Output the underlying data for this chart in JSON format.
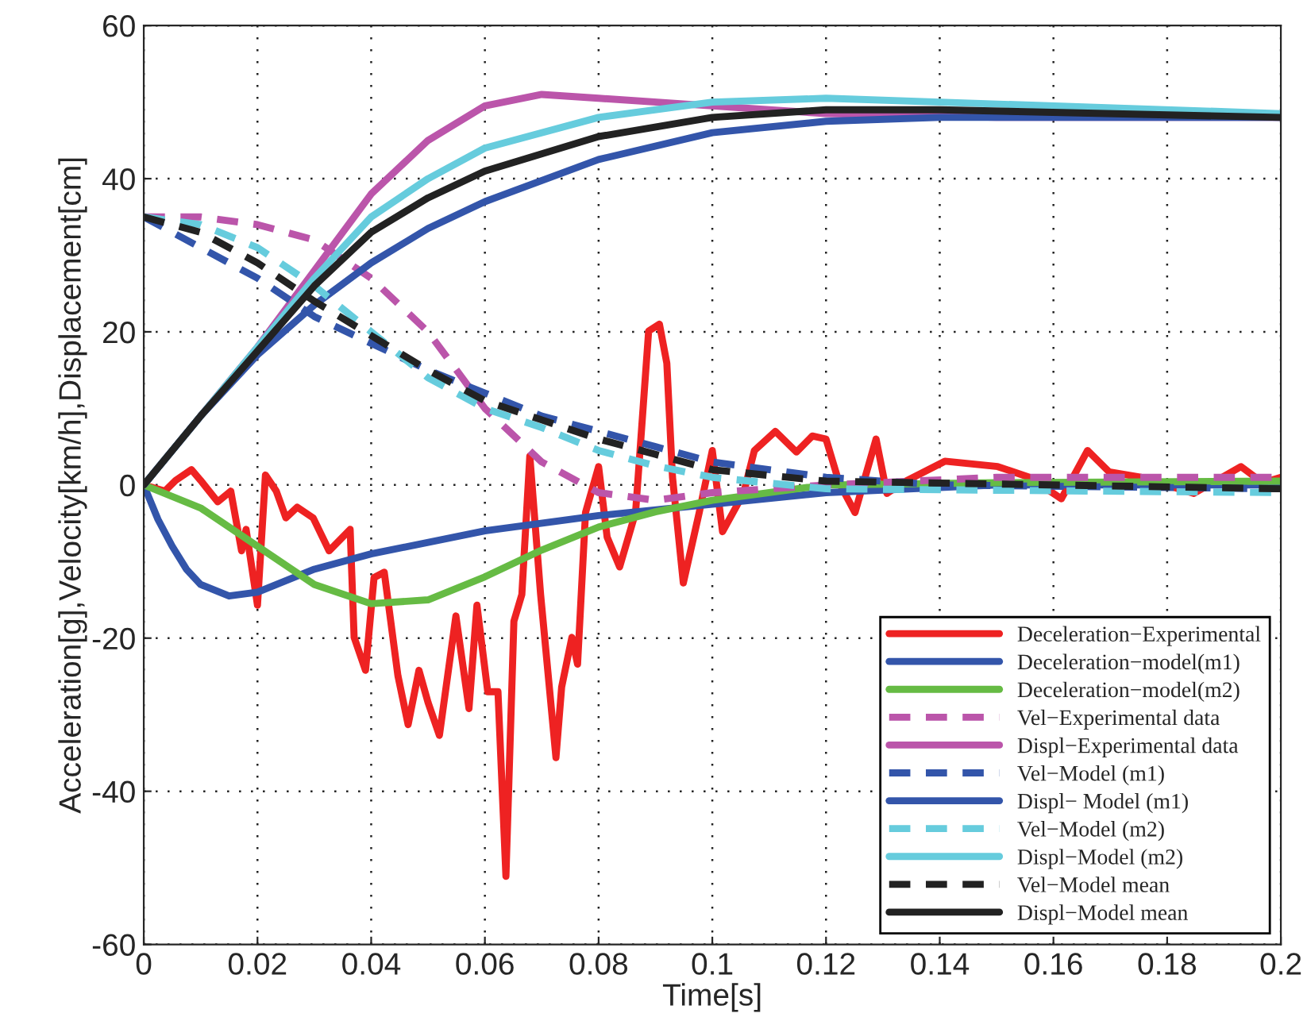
{
  "chart_data": {
    "type": "line",
    "xlabel": "Time[s]",
    "ylabel": "Acceleration[g],Velocity[km/h],Displacement[cm]",
    "xlim": [
      0,
      0.2
    ],
    "ylim": [
      -60,
      60
    ],
    "xticks": [
      0,
      0.02,
      0.04,
      0.06,
      0.08,
      0.1,
      0.12,
      0.14,
      0.16,
      0.18,
      0.2
    ],
    "yticks": [
      -60,
      -40,
      -20,
      0,
      20,
      40,
      60
    ],
    "grid": true,
    "legend": "bottom right",
    "marker": "none",
    "series": [
      {
        "name": "Deceleration−Experimental",
        "color": "#ee2222",
        "line_style": "solid",
        "x": [
          0,
          0.0037,
          0.0056,
          0.0084,
          0.01,
          0.013,
          0.0153,
          0.0172,
          0.018,
          0.02,
          0.0214,
          0.0233,
          0.025,
          0.027,
          0.0298,
          0.0326,
          0.0363,
          0.037,
          0.039,
          0.0405,
          0.0423,
          0.0447,
          0.0465,
          0.0484,
          0.05,
          0.052,
          0.0549,
          0.0572,
          0.0586,
          0.0605,
          0.0623,
          0.0637,
          0.0651,
          0.0665,
          0.0679,
          0.0698,
          0.0725,
          0.0735,
          0.0753,
          0.0763,
          0.0777,
          0.08,
          0.0815,
          0.0837,
          0.0865,
          0.0888,
          0.0907,
          0.092,
          0.093,
          0.0949,
          0.0977,
          0.1,
          0.1018,
          0.1055,
          0.1074,
          0.1111,
          0.1148,
          0.1176,
          0.12,
          0.1223,
          0.1251,
          0.1288,
          0.1307,
          0.1335,
          0.1409,
          0.1502,
          0.1558,
          0.1614,
          0.166,
          0.1698,
          0.1754,
          0.1847,
          0.193,
          0.1968,
          0.2
        ],
        "values": [
          0,
          -0.8,
          0.6,
          2,
          0.6,
          -2.2,
          -0.8,
          -8.6,
          -5.8,
          -15.7,
          1.3,
          -0.8,
          -4.3,
          -2.9,
          -4.3,
          -8.6,
          -5.8,
          -19.9,
          -24.2,
          -12.1,
          -11.4,
          -24.9,
          -31.3,
          -24.2,
          -28.4,
          -32.7,
          -17.1,
          -29.2,
          -15.7,
          -27,
          -27,
          -51.1,
          -17.8,
          -14.3,
          3.8,
          -14.3,
          -35.6,
          -26.4,
          -19.9,
          -23.4,
          -3.6,
          2.4,
          -6.8,
          -10.7,
          -3.6,
          20.1,
          21,
          15.9,
          1,
          -12.8,
          -3.6,
          4.5,
          -6.1,
          -1.1,
          4.5,
          7,
          4.3,
          6.4,
          6,
          0.3,
          -3.6,
          6,
          -1.1,
          0.3,
          3.1,
          2.4,
          1,
          -1.8,
          4.5,
          1.7,
          1,
          -1.1,
          2.4,
          0.3,
          1
        ]
      },
      {
        "name": "Deceleration−model(m1)",
        "color": "#3355aa",
        "line_style": "solid",
        "x": [
          0,
          0.0025,
          0.005,
          0.0075,
          0.01,
          0.015,
          0.02,
          0.03,
          0.04,
          0.06,
          0.08,
          0.1,
          0.12,
          0.15,
          0.2
        ],
        "values": [
          0,
          -4.5,
          -8,
          -11,
          -13,
          -14.5,
          -14,
          -11,
          -9,
          -6,
          -4,
          -2.5,
          -1,
          0,
          0
        ]
      },
      {
        "name": "Deceleration−model(m2)",
        "color": "#66bb44",
        "line_style": "solid",
        "x": [
          0,
          0.01,
          0.02,
          0.03,
          0.04,
          0.05,
          0.06,
          0.07,
          0.08,
          0.09,
          0.1,
          0.12,
          0.15,
          0.2
        ],
        "values": [
          0,
          -3,
          -8,
          -13,
          -15.5,
          -15,
          -12,
          -8.5,
          -5.5,
          -3.5,
          -2,
          0,
          0.3,
          0.5
        ]
      },
      {
        "name": "Vel−Experimental data",
        "color": "#bb55aa",
        "line_style": "dashed",
        "x": [
          0,
          0.01,
          0.02,
          0.03,
          0.04,
          0.05,
          0.06,
          0.07,
          0.08,
          0.09,
          0.1,
          0.12,
          0.15,
          0.2
        ],
        "values": [
          35,
          35,
          34,
          32,
          27,
          20,
          10,
          3,
          -1,
          -2,
          -1,
          0,
          1,
          1
        ]
      },
      {
        "name": "Displ−Experimental data",
        "color": "#bb55aa",
        "line_style": "solid",
        "x": [
          0,
          0.01,
          0.02,
          0.03,
          0.04,
          0.05,
          0.06,
          0.07,
          0.08,
          0.1,
          0.12,
          0.15,
          0.2
        ],
        "values": [
          0,
          9,
          18,
          28,
          38,
          45,
          49.5,
          51,
          50.5,
          49.5,
          48.5,
          48,
          48
        ]
      },
      {
        "name": "Vel−Model (m1)",
        "color": "#3355aa",
        "line_style": "dashed",
        "x": [
          0,
          0.01,
          0.02,
          0.03,
          0.04,
          0.05,
          0.06,
          0.07,
          0.08,
          0.09,
          0.1,
          0.12,
          0.14,
          0.2
        ],
        "values": [
          35,
          31,
          27,
          22,
          18.5,
          15,
          12,
          9,
          7,
          5,
          3,
          1,
          0,
          -0.5
        ]
      },
      {
        "name": "Displ− Model (m1)",
        "color": "#3355aa",
        "line_style": "solid",
        "x": [
          0,
          0.01,
          0.02,
          0.03,
          0.04,
          0.05,
          0.06,
          0.08,
          0.1,
          0.12,
          0.14,
          0.2
        ],
        "values": [
          0,
          9,
          17,
          23.5,
          29,
          33.5,
          37,
          42.5,
          46,
          47.5,
          48,
          48
        ]
      },
      {
        "name": "Vel−Model (m2)",
        "color": "#66ccdd",
        "line_style": "dashed",
        "x": [
          0,
          0.01,
          0.02,
          0.03,
          0.04,
          0.05,
          0.06,
          0.07,
          0.08,
          0.09,
          0.1,
          0.12,
          0.2
        ],
        "values": [
          35,
          34,
          31,
          26,
          20,
          14,
          10,
          7.5,
          4.5,
          2.5,
          1,
          -0.5,
          -1
        ]
      },
      {
        "name": "Displ−Model (m2)",
        "color": "#66ccdd",
        "line_style": "solid",
        "x": [
          0,
          0.01,
          0.02,
          0.03,
          0.04,
          0.05,
          0.06,
          0.08,
          0.1,
          0.12,
          0.14,
          0.2
        ],
        "values": [
          0,
          9,
          18,
          27,
          35,
          40,
          44,
          48,
          50,
          50.5,
          50,
          48.5
        ]
      },
      {
        "name": "Vel−Model mean",
        "color": "#222222",
        "line_style": "dashed",
        "x": [
          0,
          0.01,
          0.02,
          0.03,
          0.04,
          0.05,
          0.06,
          0.07,
          0.08,
          0.09,
          0.1,
          0.12,
          0.2
        ],
        "values": [
          35,
          33,
          29,
          24,
          19.5,
          15,
          11,
          8.5,
          6,
          4,
          2,
          0.5,
          -0.5
        ]
      },
      {
        "name": "Displ−Model mean",
        "color": "#222222",
        "line_style": "solid",
        "x": [
          0,
          0.01,
          0.02,
          0.03,
          0.04,
          0.05,
          0.06,
          0.08,
          0.1,
          0.12,
          0.14,
          0.2
        ],
        "values": [
          0,
          9,
          17.5,
          26,
          33,
          37.5,
          41,
          45.5,
          48,
          49,
          49,
          48
        ]
      }
    ]
  }
}
